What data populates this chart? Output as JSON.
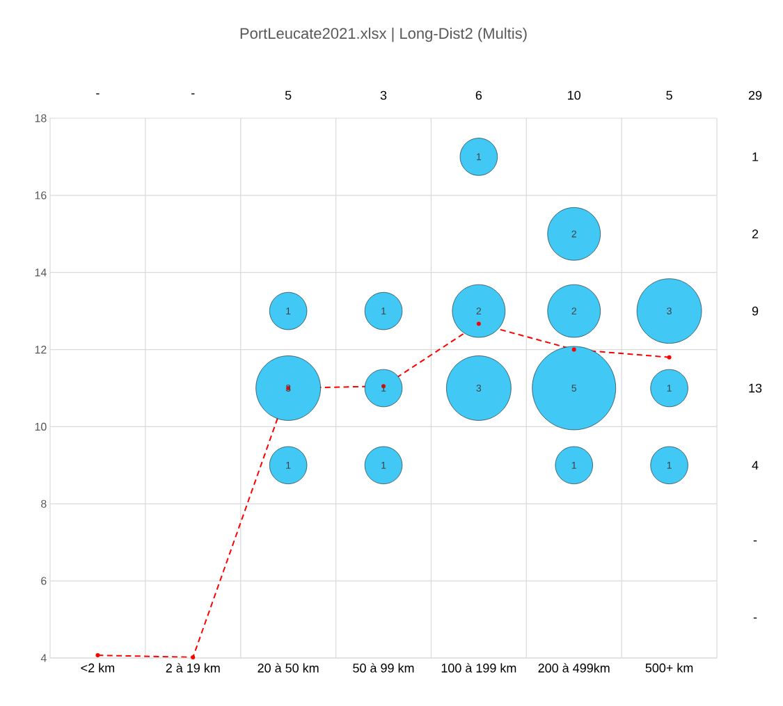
{
  "chart_data": {
    "type": "bubble",
    "title": "PortLeucate2021.xlsx | Long-Dist2 (Multis)",
    "categories": [
      "<2 km",
      "2 à 19 km",
      "20 à 50 km",
      "50 à 99 km",
      "100 à 199 km",
      "200 à 499km",
      "500+ km"
    ],
    "series": [
      {
        "type": "bubble",
        "color": "#41c8f4",
        "x": [
          "20 à 50 km",
          "20 à 50 km",
          "20 à 50 km",
          "50 à 99 km",
          "50 à 99 km",
          "50 à 99 km",
          "100 à 199 km",
          "100 à 199 km",
          "100 à 199 km",
          "200 à 499km",
          "200 à 499km",
          "200 à 499km",
          "200 à 499km",
          "500+ km",
          "500+ km",
          "500+ km"
        ],
        "values": [
          13,
          11,
          9,
          13,
          11,
          9,
          17,
          13,
          11,
          15,
          13,
          11,
          9,
          13,
          11,
          9
        ],
        "sizes": [
          1,
          3,
          1,
          1,
          1,
          1,
          1,
          2,
          3,
          2,
          2,
          5,
          1,
          3,
          1,
          1
        ],
        "value_labels": [
          "1",
          "3",
          "1",
          "1",
          "1",
          "1",
          "1",
          "2",
          "3",
          "2",
          "2",
          "5",
          "1",
          "3",
          "1",
          "1"
        ]
      },
      {
        "type": "line",
        "color": "#ff0000",
        "values": [
          4.07,
          4.02,
          11.0,
          11.05,
          12.67,
          12.0,
          11.8
        ]
      }
    ],
    "ylim": [
      4,
      18
    ],
    "yticks": [
      4,
      6,
      8,
      10,
      12,
      14,
      16,
      18
    ],
    "grid": true,
    "marker": "circle",
    "line_style": "dashed",
    "annotations": [
      "-",
      "-",
      "5",
      "3",
      "6",
      "10",
      "5",
      "29",
      "1",
      "2",
      "9",
      "13",
      "4",
      "-",
      "-"
    ]
  }
}
